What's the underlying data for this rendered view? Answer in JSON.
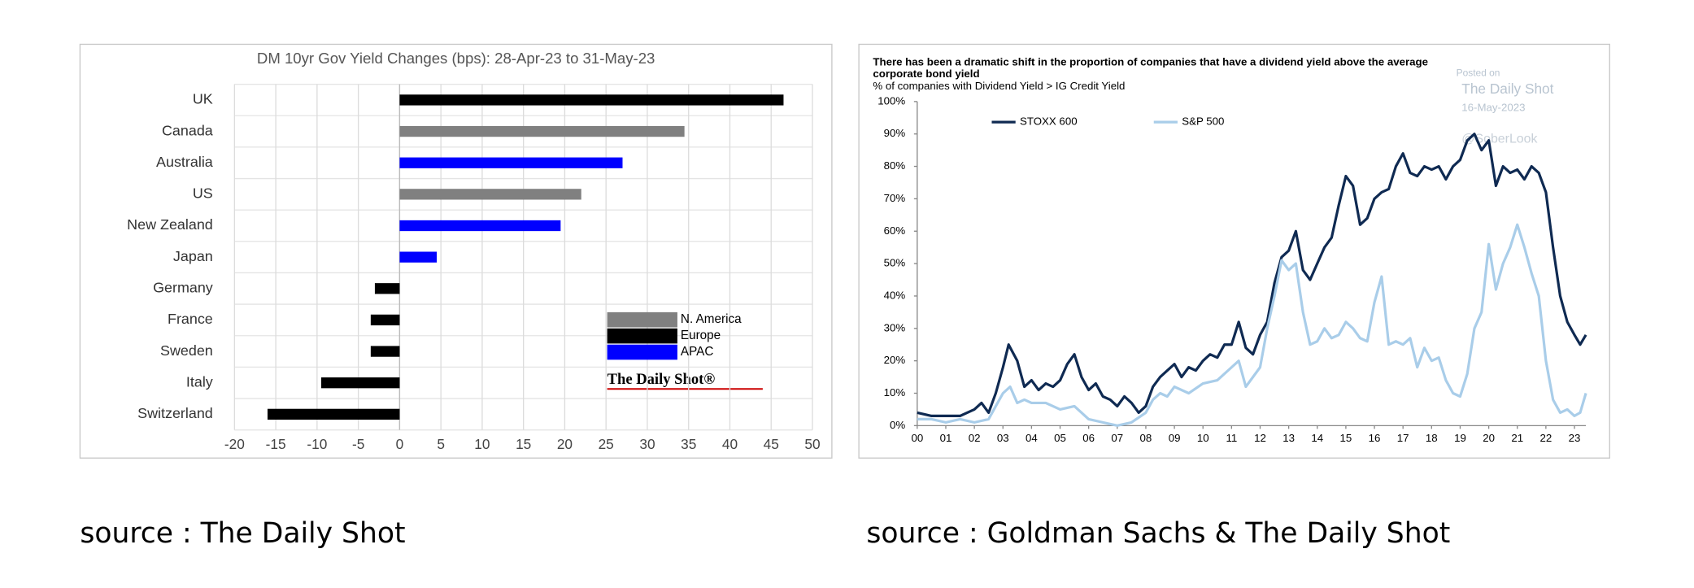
{
  "chart_data": [
    {
      "type": "barh",
      "title": "DM 10yr Gov Yield Changes (bps): 28-Apr-23 to 31-May-23",
      "categories": [
        "UK",
        "Canada",
        "Australia",
        "US",
        "New Zealand",
        "Japan",
        "Germany",
        "France",
        "Sweden",
        "Italy",
        "Switzerland"
      ],
      "values": [
        46.5,
        34.5,
        27,
        22,
        19.5,
        4.5,
        -3,
        -3.5,
        -3.5,
        -9.5,
        -16
      ],
      "colors": [
        "#000000",
        "#808080",
        "#0000ff",
        "#808080",
        "#0000ff",
        "#0000ff",
        "#000000",
        "#000000",
        "#000000",
        "#000000",
        "#000000"
      ],
      "legend": [
        {
          "name": "N. America",
          "color": "#808080"
        },
        {
          "name": "Europe",
          "color": "#000000"
        },
        {
          "name": "APAC",
          "color": "#0000ff"
        }
      ],
      "watermark": "The Daily Shot®",
      "xlim": [
        -20,
        50
      ],
      "xticks": [
        -20,
        -15,
        -10,
        -5,
        0,
        5,
        10,
        15,
        20,
        25,
        30,
        35,
        40,
        45,
        50
      ],
      "grid": true,
      "caption": "source : The Daily Shot"
    },
    {
      "type": "line",
      "title": [
        "There has been a dramatic shift in the proportion of companies that have a dividend yield above the average",
        "corporate bond yield"
      ],
      "subtitle": "% of companies with Dividend Yield > IG Credit Yield",
      "annotations": [
        "Posted on",
        "The Daily Shot",
        "16-May-2023",
        "@SoberLook"
      ],
      "xlim": [
        2000,
        2023.4
      ],
      "xticks": [
        {
          "value": 2000,
          "label": "00"
        },
        {
          "value": 2001,
          "label": "01"
        },
        {
          "value": 2002,
          "label": "02"
        },
        {
          "value": 2003,
          "label": "03"
        },
        {
          "value": 2004,
          "label": "04"
        },
        {
          "value": 2005,
          "label": "05"
        },
        {
          "value": 2006,
          "label": "06"
        },
        {
          "value": 2007,
          "label": "07"
        },
        {
          "value": 2008,
          "label": "08"
        },
        {
          "value": 2009,
          "label": "09"
        },
        {
          "value": 2010,
          "label": "10"
        },
        {
          "value": 2011,
          "label": "11"
        },
        {
          "value": 2012,
          "label": "12"
        },
        {
          "value": 2013,
          "label": "13"
        },
        {
          "value": 2014,
          "label": "14"
        },
        {
          "value": 2015,
          "label": "15"
        },
        {
          "value": 2016,
          "label": "16"
        },
        {
          "value": 2017,
          "label": "17"
        },
        {
          "value": 2018,
          "label": "18"
        },
        {
          "value": 2019,
          "label": "19"
        },
        {
          "value": 2020,
          "label": "20"
        },
        {
          "value": 2021,
          "label": "21"
        },
        {
          "value": 2022,
          "label": "22"
        },
        {
          "value": 2023,
          "label": "23"
        }
      ],
      "ylim": [
        0,
        100
      ],
      "yticks": [
        {
          "value": 0,
          "label": "0%"
        },
        {
          "value": 10,
          "label": "10%"
        },
        {
          "value": 20,
          "label": "20%"
        },
        {
          "value": 30,
          "label": "30%"
        },
        {
          "value": 40,
          "label": "40%"
        },
        {
          "value": 50,
          "label": "50%"
        },
        {
          "value": 60,
          "label": "60%"
        },
        {
          "value": 70,
          "label": "70%"
        },
        {
          "value": 80,
          "label": "80%"
        },
        {
          "value": 90,
          "label": "90%"
        },
        {
          "value": 100,
          "label": "100%"
        }
      ],
      "series": [
        {
          "name": "STOXX 600",
          "color": "#0f2a52",
          "x": [
            2000,
            2000.5,
            2001,
            2001.5,
            2002,
            2002.25,
            2002.5,
            2002.75,
            2003,
            2003.2,
            2003.5,
            2003.75,
            2004,
            2004.25,
            2004.5,
            2004.75,
            2005,
            2005.25,
            2005.5,
            2005.75,
            2006,
            2006.25,
            2006.5,
            2006.75,
            2007,
            2007.25,
            2007.5,
            2007.75,
            2008,
            2008.25,
            2008.5,
            2008.75,
            2009,
            2009.25,
            2009.5,
            2009.75,
            2010,
            2010.25,
            2010.5,
            2010.75,
            2011,
            2011.25,
            2011.5,
            2011.75,
            2012,
            2012.25,
            2012.5,
            2012.75,
            2013,
            2013.25,
            2013.5,
            2013.75,
            2014,
            2014.25,
            2014.5,
            2014.75,
            2015,
            2015.25,
            2015.5,
            2015.75,
            2016,
            2016.25,
            2016.5,
            2016.75,
            2017,
            2017.25,
            2017.5,
            2017.75,
            2018,
            2018.25,
            2018.5,
            2018.75,
            2019,
            2019.25,
            2019.5,
            2019.75,
            2020,
            2020.25,
            2020.5,
            2020.75,
            2021,
            2021.25,
            2021.5,
            2021.75,
            2022,
            2022.25,
            2022.5,
            2022.75,
            2023,
            2023.2,
            2023.4
          ],
          "values": [
            4,
            3,
            3,
            3,
            5,
            7,
            4,
            10,
            18,
            25,
            20,
            12,
            14,
            11,
            13,
            12,
            14,
            19,
            22,
            15,
            11,
            13,
            9,
            8,
            6,
            9,
            7,
            4,
            6,
            12,
            15,
            17,
            19,
            15,
            18,
            17,
            20,
            22,
            21,
            25,
            25,
            32,
            24,
            22,
            28,
            32,
            44,
            52,
            54,
            60,
            48,
            45,
            50,
            55,
            58,
            68,
            77,
            74,
            62,
            64,
            70,
            72,
            73,
            80,
            84,
            78,
            77,
            80,
            79,
            80,
            76,
            80,
            82,
            88,
            90,
            85,
            88,
            74,
            80,
            78,
            79,
            76,
            80,
            78,
            72,
            55,
            40,
            32,
            28,
            25,
            28
          ]
        },
        {
          "name": "S&P 500",
          "color": "#a9cde9",
          "x": [
            2000,
            2000.5,
            2001,
            2001.5,
            2002,
            2002.5,
            2002.75,
            2003,
            2003.25,
            2003.5,
            2003.75,
            2004,
            2004.5,
            2005,
            2005.5,
            2006,
            2006.5,
            2007,
            2007.5,
            2008,
            2008.25,
            2008.5,
            2008.75,
            2009,
            2009.5,
            2010,
            2010.5,
            2011,
            2011.25,
            2011.5,
            2012,
            2012.25,
            2012.5,
            2012.75,
            2013,
            2013.25,
            2013.5,
            2013.75,
            2014,
            2014.25,
            2014.5,
            2014.75,
            2015,
            2015.25,
            2015.5,
            2015.75,
            2016,
            2016.25,
            2016.5,
            2016.75,
            2017,
            2017.25,
            2017.5,
            2017.75,
            2018,
            2018.25,
            2018.5,
            2018.75,
            2019,
            2019.25,
            2019.5,
            2019.75,
            2020,
            2020.25,
            2020.5,
            2020.75,
            2021,
            2021.25,
            2021.5,
            2021.75,
            2022,
            2022.25,
            2022.5,
            2022.75,
            2023,
            2023.2,
            2023.4
          ],
          "values": [
            2,
            2,
            1,
            2,
            1,
            2,
            6,
            10,
            12,
            7,
            8,
            7,
            7,
            5,
            6,
            2,
            1,
            0,
            1,
            4,
            8,
            10,
            9,
            12,
            10,
            13,
            14,
            18,
            20,
            12,
            18,
            30,
            40,
            51,
            48,
            50,
            35,
            25,
            26,
            30,
            27,
            28,
            32,
            30,
            27,
            26,
            38,
            46,
            25,
            26,
            25,
            27,
            18,
            24,
            20,
            21,
            14,
            10,
            9,
            16,
            30,
            35,
            56,
            42,
            50,
            55,
            62,
            55,
            47,
            40,
            20,
            8,
            4,
            5,
            3,
            4,
            10
          ]
        }
      ],
      "caption": "source : Goldman Sachs & The Daily Shot"
    }
  ]
}
